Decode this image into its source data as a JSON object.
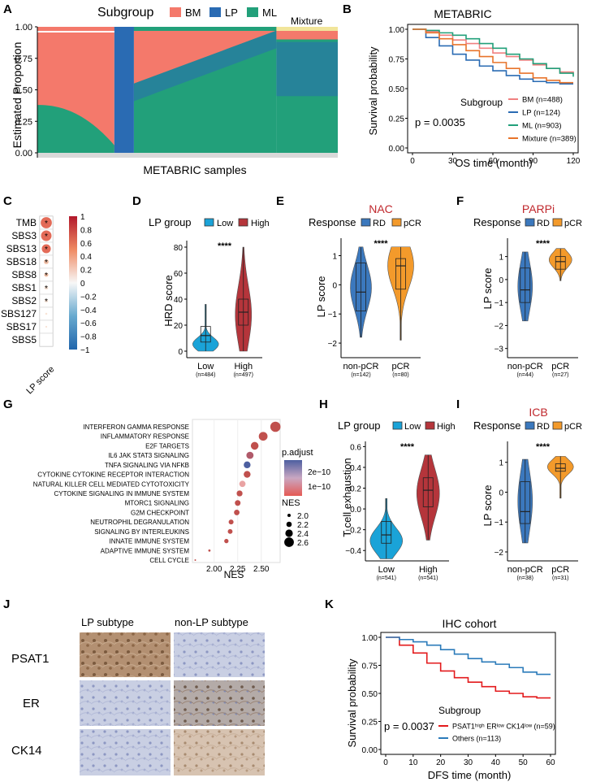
{
  "panel_letters": [
    "A",
    "B",
    "C",
    "D",
    "E",
    "F",
    "G",
    "H",
    "I",
    "J",
    "K"
  ],
  "chart_data": [
    {
      "panel": "A",
      "type": "area",
      "title": "",
      "legend_title": "Subgroup",
      "legend": [
        {
          "name": "BM",
          "color": "#f4796b"
        },
        {
          "name": "LP",
          "color": "#2a6bb3"
        },
        {
          "name": "ML",
          "color": "#22a07a"
        }
      ],
      "ylabel": "Estimated Proportion",
      "xlabel": "METABRIC samples",
      "ylim": [
        0,
        1
      ],
      "yticks": [
        "0.00",
        "0.25",
        "0.50",
        "0.75",
        "1.00"
      ],
      "mixture_label": "Mixture",
      "groups": [
        {
          "name": "BM",
          "n": 488,
          "color": "#f4796b"
        },
        {
          "name": "LP",
          "n": 124,
          "color": "#2a6bb3"
        },
        {
          "name": "ML",
          "n": 903,
          "color": "#22a07a"
        },
        {
          "name": "Mixture",
          "n": 389,
          "color": "#f1e59a"
        }
      ]
    },
    {
      "panel": "B",
      "type": "line",
      "title": "METABRIC",
      "xlabel": "OS time (month)",
      "ylabel": "Survival probability",
      "xlim": [
        0,
        120
      ],
      "ylim": [
        0,
        1
      ],
      "xticks": [
        "0",
        "30",
        "60",
        "90",
        "120"
      ],
      "yticks": [
        "0.00",
        "0.25",
        "0.50",
        "0.75",
        "1.00"
      ],
      "legend_title": "Subgroup",
      "pvalue": "p = 0.0035",
      "x": [
        0,
        10,
        20,
        30,
        40,
        50,
        60,
        70,
        80,
        90,
        100,
        110,
        120
      ],
      "series": [
        {
          "name": "BM (n=488)",
          "color": "#f08080",
          "values": [
            1,
            0.98,
            0.95,
            0.91,
            0.88,
            0.84,
            0.8,
            0.77,
            0.74,
            0.7,
            0.67,
            0.64,
            0.62
          ]
        },
        {
          "name": "LP (n=124)",
          "color": "#2a6bb3",
          "values": [
            1,
            0.93,
            0.86,
            0.79,
            0.74,
            0.69,
            0.65,
            0.61,
            0.58,
            0.56,
            0.55,
            0.54,
            0.54
          ]
        },
        {
          "name": "ML (n=903)",
          "color": "#22a07a",
          "values": [
            1,
            0.99,
            0.97,
            0.95,
            0.92,
            0.88,
            0.84,
            0.79,
            0.75,
            0.71,
            0.67,
            0.63,
            0.6
          ]
        },
        {
          "name": "Mixture (n=389)",
          "color": "#e8742b",
          "values": [
            1,
            0.97,
            0.92,
            0.87,
            0.82,
            0.77,
            0.72,
            0.67,
            0.63,
            0.59,
            0.57,
            0.55,
            0.55
          ]
        }
      ]
    },
    {
      "panel": "C",
      "type": "heatmap",
      "title": "",
      "rows": [
        "TMB",
        "SBS3",
        "SBS13",
        "SBS18",
        "SBS8",
        "SBS1",
        "SBS2",
        "SBS127",
        "SBS17",
        "SBS5"
      ],
      "values": [
        0.45,
        0.42,
        0.35,
        0.15,
        0.12,
        0.1,
        0.08,
        0.02,
        0.01,
        0.0
      ],
      "stars": [
        "*",
        "*",
        "*",
        "*",
        "*",
        "*",
        "*",
        "",
        "",
        ""
      ],
      "xlabel": "LP score",
      "colorbar_ticks": [
        "1",
        "0.8",
        "0.6",
        "0.4",
        "0.2",
        "0",
        "−0.2",
        "−0.4",
        "−0.6",
        "−0.8",
        "−1"
      ]
    },
    {
      "panel": "D",
      "type": "violin",
      "legend_title": "LP group",
      "legend": [
        {
          "name": "Low",
          "color": "#1aa3d8"
        },
        {
          "name": "High",
          "color": "#b5353b"
        }
      ],
      "ylabel": "HRD score",
      "yticks": [
        "0",
        "20",
        "40",
        "60",
        "80"
      ],
      "ylim": [
        -5,
        85
      ],
      "significance": "****",
      "groups": [
        {
          "label": "Low",
          "n": "(n=484)",
          "color": "#1aa3d8",
          "median": 12,
          "q1": 7,
          "q3": 19,
          "min": 0,
          "max": 36
        },
        {
          "label": "High",
          "n": "(n=497)",
          "color": "#b5353b",
          "median": 30,
          "q1": 20,
          "q3": 40,
          "min": 0,
          "max": 80
        }
      ]
    },
    {
      "panel": "E",
      "type": "violin",
      "title": "NAC",
      "legend_title": "Response",
      "legend": [
        {
          "name": "RD",
          "color": "#3b78bd"
        },
        {
          "name": "pCR",
          "color": "#f39a2b"
        }
      ],
      "ylabel": "LP score",
      "yticks": [
        "1",
        "0",
        "−1",
        "−2"
      ],
      "ylim": [
        -2.5,
        1.6
      ],
      "significance": "****",
      "groups": [
        {
          "label": "non-pCR",
          "n": "(n=142)",
          "color": "#3b78bd",
          "median": -0.25,
          "q1": -0.9,
          "q3": 0.75,
          "min": -1.8,
          "max": 1.3
        },
        {
          "label": "pCR",
          "n": "(n=80)",
          "color": "#f39a2b",
          "median": 0.65,
          "q1": -0.15,
          "q3": 0.9,
          "min": -1.9,
          "max": 1.3
        }
      ]
    },
    {
      "panel": "F",
      "type": "violin",
      "title": "PARPi",
      "legend_title": "Response",
      "legend": [
        {
          "name": "RD",
          "color": "#3b78bd"
        },
        {
          "name": "pCR",
          "color": "#f39a2b"
        }
      ],
      "ylabel": "LP score",
      "yticks": [
        "1",
        "0",
        "−1",
        "−2",
        "−3"
      ],
      "ylim": [
        -3.4,
        1.8
      ],
      "significance": "****",
      "groups": [
        {
          "label": "non-pCR",
          "n": "(n=44)",
          "color": "#3b78bd",
          "median": -0.45,
          "q1": -1.0,
          "q3": 0.5,
          "min": -1.8,
          "max": 1.2
        },
        {
          "label": "pCR",
          "n": "(n=27)",
          "color": "#f39a2b",
          "median": 0.78,
          "q1": 0.45,
          "q3": 1.0,
          "min": -0.05,
          "max": 1.35
        }
      ]
    },
    {
      "panel": "G",
      "type": "scatter",
      "xlabel": "NES",
      "xlim": [
        1.77,
        2.7
      ],
      "xticks": [
        2.0,
        2.25,
        2.5
      ],
      "xtick_labels": [
        "2.00",
        "2.25",
        "2.50"
      ],
      "legend_title_color": "p.adjust",
      "legend_color_ticks": [
        "2e−10",
        "1e−10"
      ],
      "legend_title_size": "NES",
      "legend_size_ticks": [
        "2.0",
        "2.2",
        "2.4",
        "2.6"
      ],
      "terms": [
        {
          "name": "INTERFERON GAMMA RESPONSE",
          "nes": 2.65,
          "color": "#c0504d"
        },
        {
          "name": "INFLAMMATORY RESPONSE",
          "nes": 2.52,
          "color": "#c0504d"
        },
        {
          "name": "E2F TARGETS",
          "nes": 2.43,
          "color": "#c0504d"
        },
        {
          "name": "IL6 JAK STAT3 SIGNALING",
          "nes": 2.38,
          "color": "#b05a6a"
        },
        {
          "name": "TNFA SIGNALING VIA NFKB",
          "nes": 2.35,
          "color": "#4d5fa0"
        },
        {
          "name": "CYTOKINE CYTOKINE RECEPTOR INTERACTION",
          "nes": 2.35,
          "color": "#c0504d"
        },
        {
          "name": "NATURAL KILLER CELL MEDIATED CYTOTOXICITY",
          "nes": 2.3,
          "color": "#e9a3a3"
        },
        {
          "name": "CYTOKINE SIGNALING IN IMMUNE SYSTEM",
          "nes": 2.27,
          "color": "#c0504d"
        },
        {
          "name": "MTORC1 SIGNALING",
          "nes": 2.25,
          "color": "#c0504d"
        },
        {
          "name": "G2M CHECKPOINT",
          "nes": 2.24,
          "color": "#c0504d"
        },
        {
          "name": "NEUTROPHIL DEGRANULATION",
          "nes": 2.18,
          "color": "#c0504d"
        },
        {
          "name": "SIGNALING BY INTERLEUKINS",
          "nes": 2.17,
          "color": "#c0504d"
        },
        {
          "name": "INNATE IMMUNE SYSTEM",
          "nes": 2.13,
          "color": "#c0504d"
        },
        {
          "name": "ADAPTIVE IMMUNE SYSTEM",
          "nes": 1.95,
          "color": "#c0504d"
        },
        {
          "name": "CELL CYCLE",
          "nes": 1.8,
          "color": "#c0504d"
        }
      ]
    },
    {
      "panel": "H",
      "type": "violin",
      "legend_title": "LP group",
      "legend": [
        {
          "name": "Low",
          "color": "#1aa3d8"
        },
        {
          "name": "High",
          "color": "#b5353b"
        }
      ],
      "ylabel": "T cell exhaustion",
      "yticks": [
        "0.6",
        "0.4",
        "0.2",
        "0.0",
        "−0.2",
        "−0.4"
      ],
      "ylim": [
        -0.5,
        0.65
      ],
      "significance": "****",
      "groups": [
        {
          "label": "Low",
          "n": "(n=541)",
          "color": "#1aa3d8",
          "median": -0.25,
          "q1": -0.33,
          "q3": -0.12,
          "min": -0.48,
          "max": 0.1
        },
        {
          "label": "High",
          "n": "(n=541)",
          "color": "#b5353b",
          "median": 0.18,
          "q1": 0.02,
          "q3": 0.3,
          "min": -0.3,
          "max": 0.52
        }
      ]
    },
    {
      "panel": "I",
      "type": "violin",
      "title": "ICB",
      "legend_title": "Response",
      "legend": [
        {
          "name": "RD",
          "color": "#3b78bd"
        },
        {
          "name": "pCR",
          "color": "#f39a2b"
        }
      ],
      "ylabel": "LP score",
      "yticks": [
        "1",
        "0",
        "−1",
        "−2"
      ],
      "ylim": [
        -2.3,
        1.7
      ],
      "significance": "****",
      "groups": [
        {
          "label": "non-pCR",
          "n": "(n=38)",
          "color": "#3b78bd",
          "median": -0.65,
          "q1": -1.05,
          "q3": 0.35,
          "min": -1.7,
          "max": 1.1
        },
        {
          "label": "pCR",
          "n": "(n=31)",
          "color": "#f39a2b",
          "median": 0.8,
          "q1": 0.7,
          "q3": 0.95,
          "min": -0.2,
          "max": 1.2
        }
      ]
    },
    {
      "panel": "K",
      "type": "line",
      "title": "IHC cohort",
      "xlabel": "DFS time (month)",
      "ylabel": "Survival probability",
      "xlim": [
        0,
        60
      ],
      "ylim": [
        0,
        1
      ],
      "xticks": [
        "0",
        "10",
        "20",
        "30",
        "40",
        "50",
        "60"
      ],
      "yticks": [
        "0.00",
        "0.25",
        "0.50",
        "0.75",
        "1.00"
      ],
      "legend_title": "Subgroup",
      "pvalue": "p = 0.0037",
      "x": [
        0,
        5,
        10,
        15,
        20,
        25,
        30,
        35,
        40,
        45,
        50,
        55,
        60
      ],
      "series": [
        {
          "name": "PSAT1ʰⁱᵍʰ ERˡᵒʷ CK14ˡᵒʷ (n=59)",
          "color": "#e31a1c",
          "values": [
            1,
            0.93,
            0.86,
            0.77,
            0.7,
            0.64,
            0.6,
            0.56,
            0.52,
            0.5,
            0.47,
            0.46,
            0.46
          ]
        },
        {
          "name": "Others (n=113)",
          "color": "#2b7bba",
          "values": [
            1,
            0.98,
            0.96,
            0.93,
            0.89,
            0.85,
            0.81,
            0.78,
            0.76,
            0.73,
            0.69,
            0.67,
            0.67
          ]
        }
      ]
    }
  ],
  "ihc": {
    "col_headers": [
      "LP subtype",
      "non-LP subtype"
    ],
    "row_labels": [
      "PSAT1",
      "ER",
      "CK14"
    ]
  }
}
